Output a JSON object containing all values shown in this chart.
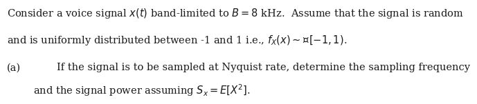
{
  "line1": "Consider a voice signal $x(t)$ band-limited to $B = 8$ kHz.  Assume that the signal is random",
  "line2": "and is uniformly distributed between -1 and 1 i.e., $f_X(x) \\sim \\mathcal{U}[-1, 1)$.",
  "line3_label": "(a)",
  "line3_text": "If the signal is to be sampled at Nyquist rate, determine the sampling frequency",
  "line4_text": "and the signal power assuming $S_x = E[X^2]$.",
  "fontsize": 10.5,
  "bg_color": "#ffffff",
  "text_color": "#1a1a1a"
}
